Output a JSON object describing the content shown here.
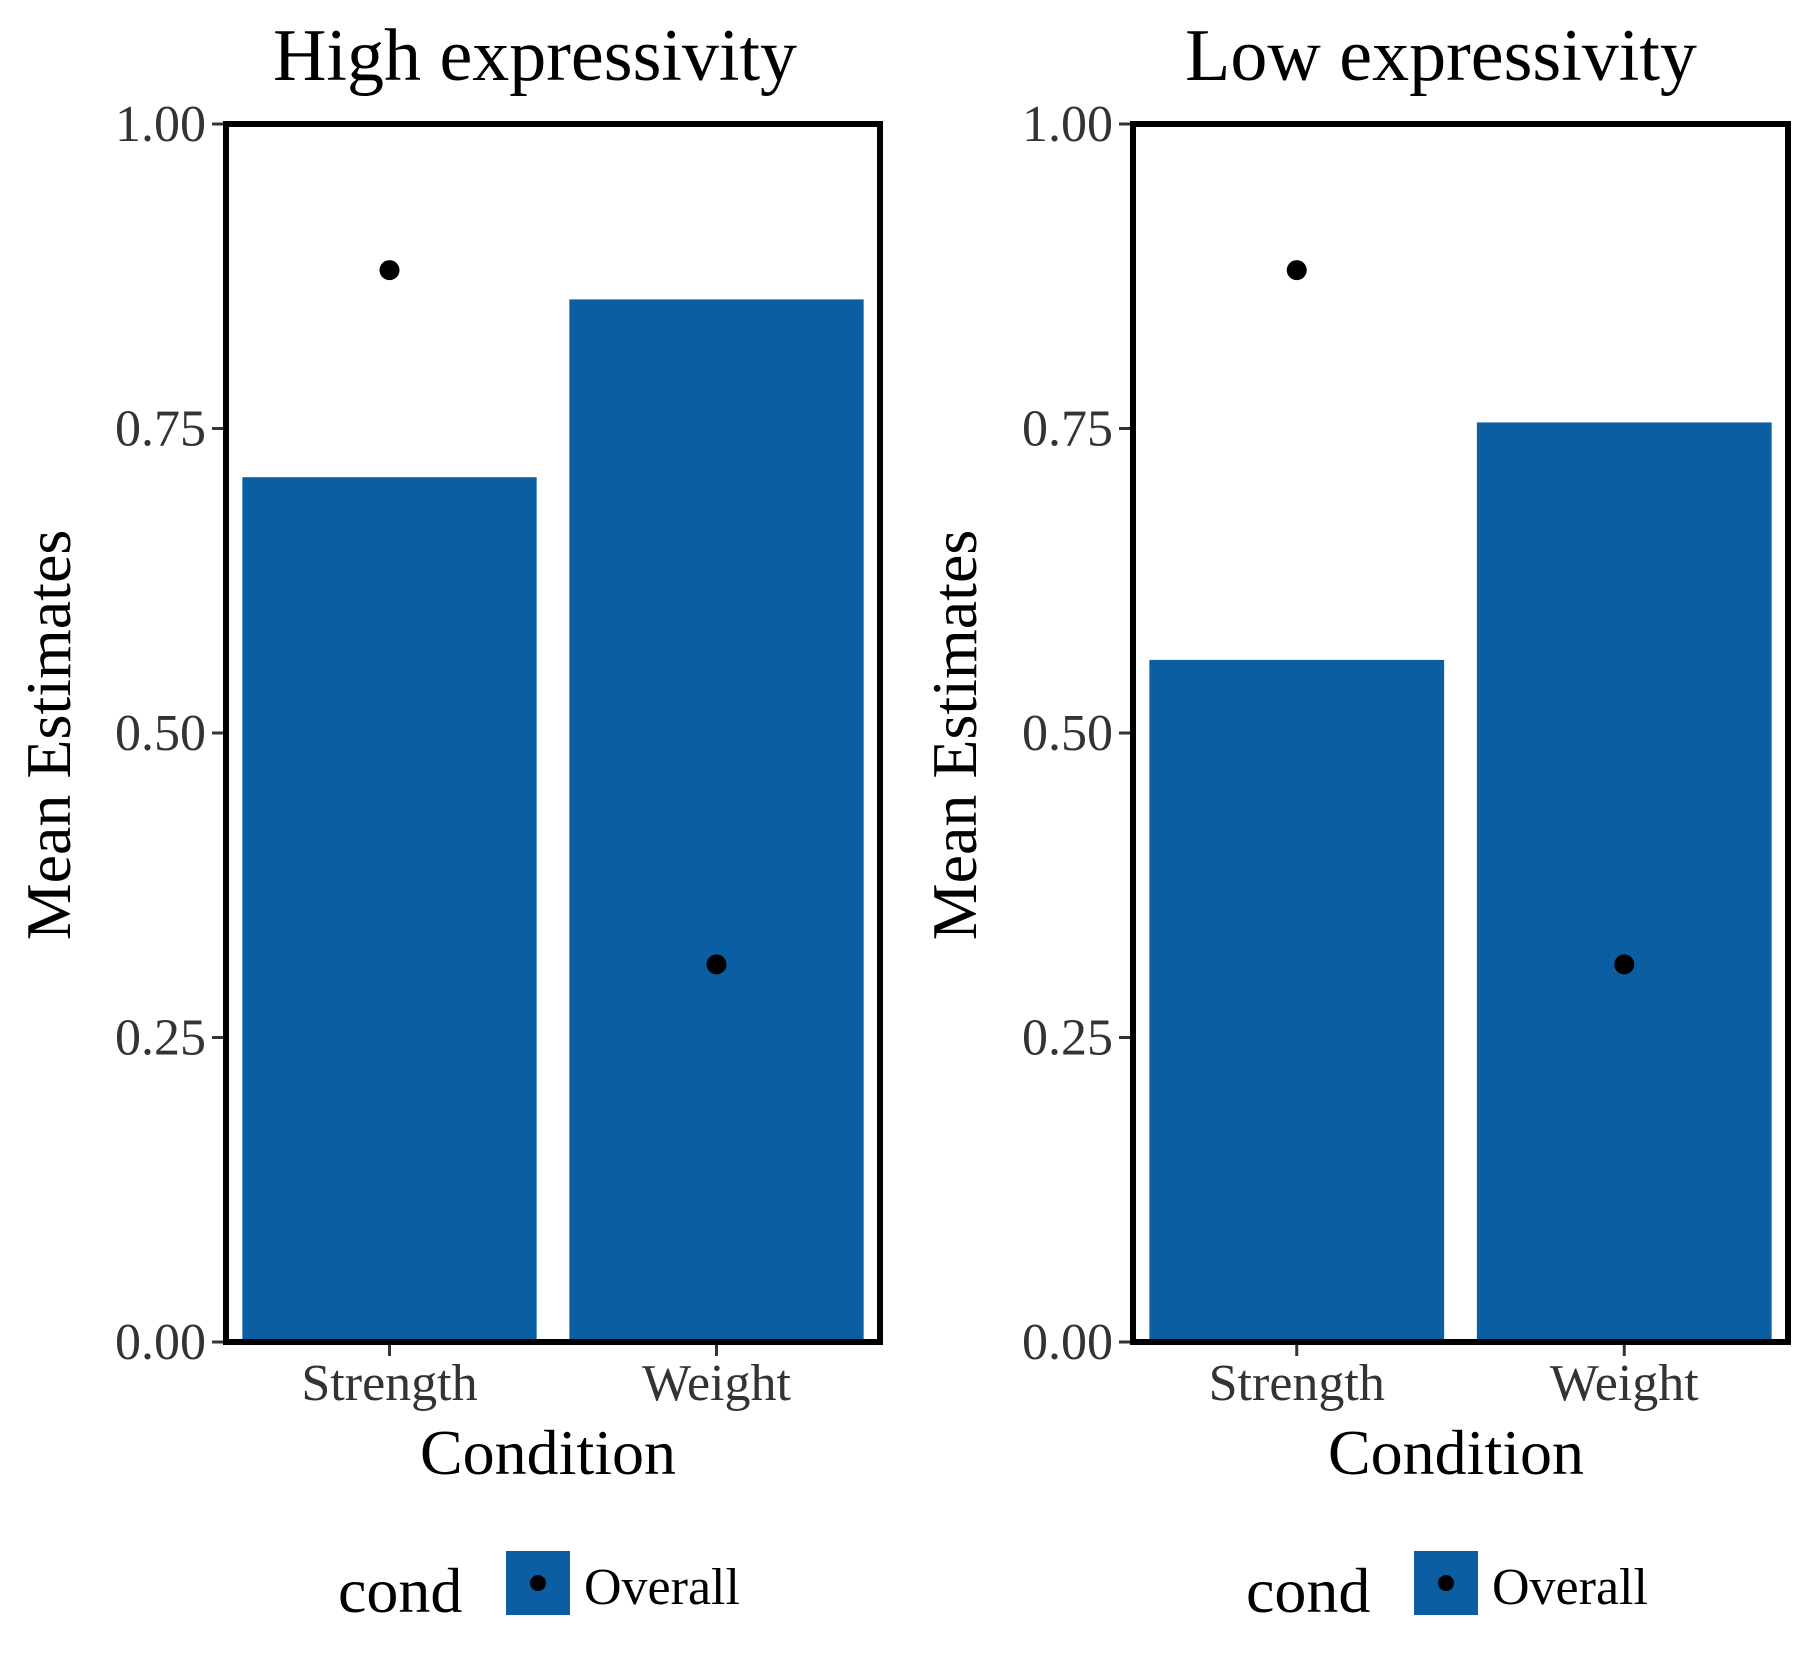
{
  "chart_data": [
    {
      "type": "bar",
      "title": "High expressivity",
      "xlabel": "Condition",
      "ylabel": "Mean Estimates",
      "categories": [
        "Strength",
        "Weight"
      ],
      "values": [
        0.71,
        0.856
      ],
      "points": [
        0.88,
        0.31
      ],
      "ylim": [
        0,
        1
      ],
      "yticks": [
        "0.00",
        "0.25",
        "0.50",
        "0.75",
        "1.00"
      ],
      "grid": false,
      "bar_color": "#0b5ea1",
      "point_color": "#000000",
      "legend": {
        "title": "cond",
        "entry": "Overall",
        "position": "bottom"
      }
    },
    {
      "type": "bar",
      "title": "Low expressivity",
      "xlabel": "Condition",
      "ylabel": "Mean Estimates",
      "categories": [
        "Strength",
        "Weight"
      ],
      "values": [
        0.56,
        0.755
      ],
      "points": [
        0.88,
        0.31
      ],
      "ylim": [
        0,
        1
      ],
      "yticks": [
        "0.00",
        "0.25",
        "0.50",
        "0.75",
        "1.00"
      ],
      "grid": false,
      "bar_color": "#0b5ea1",
      "point_color": "#000000",
      "legend": {
        "title": "cond",
        "entry": "Overall",
        "position": "bottom"
      }
    }
  ]
}
